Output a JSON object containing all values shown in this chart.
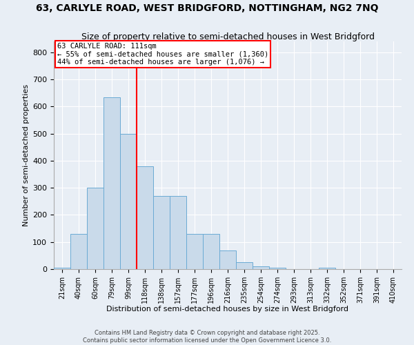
{
  "title": "63, CARLYLE ROAD, WEST BRIDGFORD, NOTTINGHAM, NG2 7NQ",
  "subtitle": "Size of property relative to semi-detached houses in West Bridgford",
  "xlabel": "Distribution of semi-detached houses by size in West Bridgford",
  "ylabel": "Number of semi-detached properties",
  "bin_labels": [
    "21sqm",
    "40sqm",
    "60sqm",
    "79sqm",
    "99sqm",
    "118sqm",
    "138sqm",
    "157sqm",
    "177sqm",
    "196sqm",
    "216sqm",
    "235sqm",
    "254sqm",
    "274sqm",
    "293sqm",
    "313sqm",
    "332sqm",
    "352sqm",
    "371sqm",
    "391sqm",
    "410sqm"
  ],
  "bar_values": [
    5,
    130,
    300,
    635,
    500,
    380,
    270,
    270,
    130,
    130,
    70,
    25,
    10,
    5,
    0,
    0,
    5,
    0,
    0,
    0,
    0
  ],
  "bar_color": "#c9daea",
  "bar_edge_color": "#6aaad4",
  "red_line_x": 4.5,
  "red_line_label": "63 CARLYLE ROAD: 111sqm",
  "annotation_line1": "← 55% of semi-detached houses are smaller (1,360)",
  "annotation_line2": "44% of semi-detached houses are larger (1,076) →",
  "ylim": [
    0,
    840
  ],
  "yticks": [
    0,
    100,
    200,
    300,
    400,
    500,
    600,
    700,
    800
  ],
  "background_color": "#e8eef5",
  "footer1": "Contains HM Land Registry data © Crown copyright and database right 2025.",
  "footer2": "Contains public sector information licensed under the Open Government Licence 3.0."
}
